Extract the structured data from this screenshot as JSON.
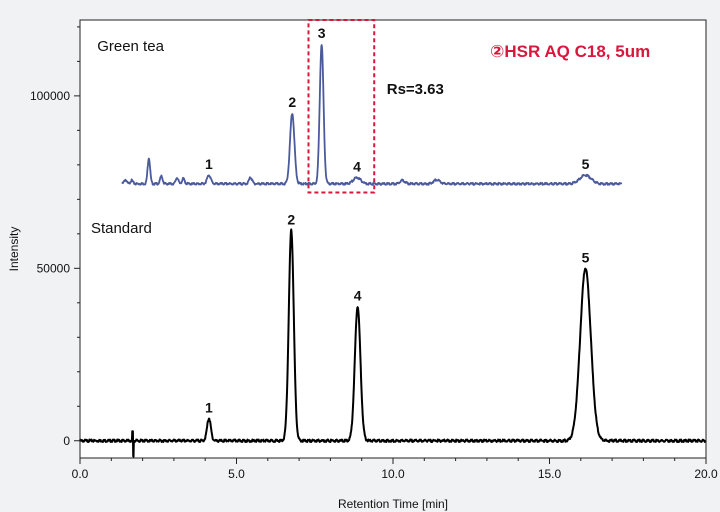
{
  "chart_data": {
    "type": "line",
    "title": "",
    "xlabel": "Retention Time [min]",
    "ylabel": "Intensity",
    "xlim": [
      0.0,
      20.0
    ],
    "ylim": [
      -5000,
      122000
    ],
    "x_ticks": [
      "0.0",
      "5.0",
      "10.0",
      "15.0",
      "20.0"
    ],
    "x_tick_values": [
      0,
      5,
      10,
      15,
      20
    ],
    "y_ticks": [
      "0",
      "50000",
      "100000"
    ],
    "y_tick_values": [
      0,
      50000,
      100000
    ],
    "grid": false,
    "series": [
      {
        "name": "Standard",
        "color": "#000000",
        "baseline": 0,
        "peaks": [
          {
            "label": "1",
            "x": 4.12,
            "height": 6500,
            "sigma": 0.06
          },
          {
            "label": "2",
            "x": 6.75,
            "height": 61000,
            "sigma": 0.08
          },
          {
            "label": "4",
            "x": 8.87,
            "height": 39000,
            "sigma": 0.09
          },
          {
            "label": "5",
            "x": 16.15,
            "height": 50000,
            "sigma": 0.17
          }
        ],
        "disturbance": {
          "x": 1.68,
          "up": 2500,
          "down": -4500
        }
      },
      {
        "name": "Green tea",
        "color": "#4a5a9c",
        "baseline": 74500,
        "peaks": [
          {
            "label": "1",
            "x": 4.12,
            "height": 2500,
            "sigma": 0.06
          },
          {
            "label": "2",
            "x": 6.78,
            "height": 20500,
            "sigma": 0.07
          },
          {
            "label": "3",
            "x": 7.72,
            "height": 40500,
            "sigma": 0.06
          },
          {
            "label": "4",
            "x": 8.85,
            "height": 1800,
            "sigma": 0.12
          },
          {
            "label": "5",
            "x": 16.15,
            "height": 2500,
            "sigma": 0.18
          }
        ],
        "minor_peaks": [
          {
            "x": 1.45,
            "height": 1200,
            "sigma": 0.04
          },
          {
            "x": 1.65,
            "height": 1000,
            "sigma": 0.04
          },
          {
            "x": 2.2,
            "height": 7500,
            "sigma": 0.04
          },
          {
            "x": 2.6,
            "height": 2200,
            "sigma": 0.04
          },
          {
            "x": 3.1,
            "height": 1800,
            "sigma": 0.04
          },
          {
            "x": 3.3,
            "height": 1500,
            "sigma": 0.04
          },
          {
            "x": 5.45,
            "height": 1800,
            "sigma": 0.05
          },
          {
            "x": 10.3,
            "height": 1000,
            "sigma": 0.08
          },
          {
            "x": 11.4,
            "height": 1200,
            "sigma": 0.1
          }
        ],
        "x_end": 17.3
      }
    ],
    "annotations": {
      "resolution": "Rs=3.63",
      "highlight_box": {
        "x": [
          7.3,
          9.4
        ],
        "y": [
          72000,
          122000
        ]
      },
      "column_title": "②HSR AQ C18, 5um",
      "column_title_color": "#d8173c",
      "highlight_color": "#d8173c"
    }
  }
}
